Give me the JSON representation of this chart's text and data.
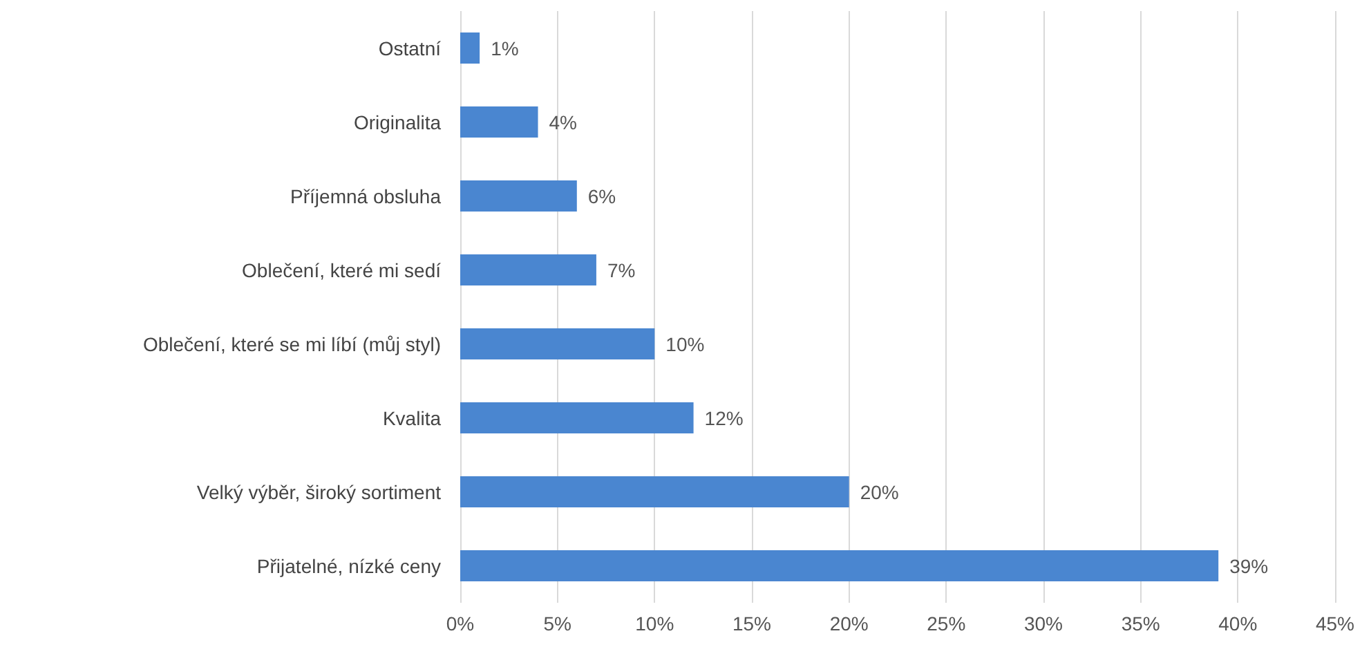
{
  "chart_data": {
    "type": "bar",
    "orientation": "horizontal",
    "categories": [
      "Ostatní",
      "Originalita",
      "Příjemná obsluha",
      "Oblečení, které mi sedí",
      "Oblečení, které se mi líbí (můj styl)",
      "Kvalita",
      "Velký výběr, široký sortiment",
      "Přijatelné, nízké ceny"
    ],
    "values": [
      1,
      4,
      6,
      7,
      10,
      12,
      20,
      39
    ],
    "value_labels": [
      "1%",
      "4%",
      "6%",
      "7%",
      "10%",
      "12%",
      "20%",
      "39%"
    ],
    "color": "#4a86d0",
    "xlim": [
      0,
      45
    ],
    "xticks": [
      {
        "value": 0,
        "label": "0%"
      },
      {
        "value": 5,
        "label": "5%"
      },
      {
        "value": 10,
        "label": "10%"
      },
      {
        "value": 15,
        "label": "15%"
      },
      {
        "value": 20,
        "label": "20%"
      },
      {
        "value": 25,
        "label": "25%"
      },
      {
        "value": 30,
        "label": "30%"
      },
      {
        "value": 35,
        "label": "35%"
      },
      {
        "value": 40,
        "label": "40%"
      },
      {
        "value": 45,
        "label": "45%"
      }
    ],
    "grid": "x"
  }
}
